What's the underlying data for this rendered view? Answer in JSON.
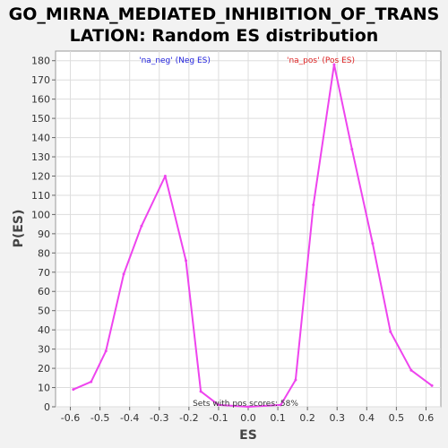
{
  "chart_data": {
    "type": "line",
    "title_line1": "GO_MIRNA_MEDIATED_INHIBITION_OF_TRANS",
    "title_line2": "LATION: Random ES distribution",
    "xlabel": "ES",
    "ylabel": "P(ES)",
    "xlim": [
      -0.65,
      0.65
    ],
    "ylim": [
      0,
      185
    ],
    "x_ticks": [
      -0.6,
      -0.5,
      -0.4,
      -0.3,
      -0.2,
      -0.1,
      0.0,
      0.1,
      0.2,
      0.3,
      0.4,
      0.5,
      0.6
    ],
    "x_tick_labels": [
      "-0.6",
      "-0.5",
      "-0.4",
      "-0.3",
      "-0.2",
      "-0.1",
      "0.0",
      "0.1",
      "0.2",
      "0.3",
      "0.4",
      "0.5",
      "0.6"
    ],
    "y_ticks": [
      0,
      10,
      20,
      30,
      40,
      50,
      60,
      70,
      80,
      90,
      100,
      110,
      120,
      130,
      140,
      150,
      160,
      170,
      180
    ],
    "y_tick_labels": [
      "0",
      "10",
      "20",
      "30",
      "40",
      "50",
      "60",
      "70",
      "80",
      "90",
      "100",
      "110",
      "120",
      "130",
      "140",
      "150",
      "160",
      "170",
      "180"
    ],
    "grid": true,
    "series": [
      {
        "color": "#ee44ee",
        "x": [
          -0.59,
          -0.53,
          -0.48,
          -0.42,
          -0.36,
          -0.28,
          -0.21,
          -0.16,
          -0.1,
          0.0,
          0.11,
          0.16,
          0.22,
          0.29,
          0.35,
          0.42,
          0.48,
          0.55,
          0.62
        ],
        "y": [
          9,
          13,
          29,
          69,
          94,
          120,
          76,
          8,
          1,
          0,
          1,
          14,
          105,
          178,
          134,
          85,
          39,
          19,
          11
        ]
      }
    ],
    "legend": [
      {
        "label": "'na_neg' (Neg ES)",
        "color": "#2222dd"
      },
      {
        "label": "'na_pos' (Pos ES)",
        "color": "#dd2222"
      }
    ],
    "annotation": "Sets with pos scores: 58%"
  }
}
